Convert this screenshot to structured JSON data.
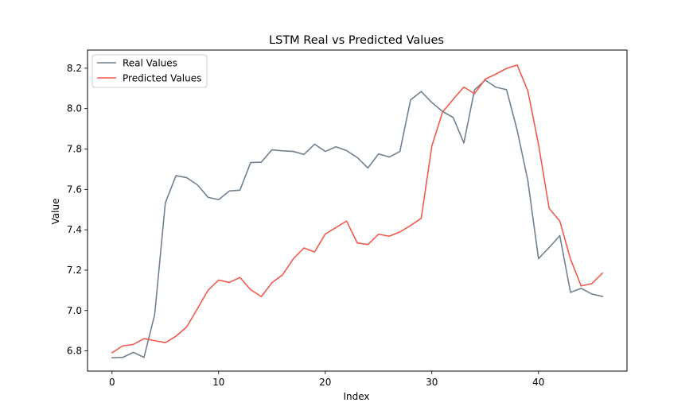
{
  "chart_data": {
    "type": "line",
    "title": "LSTM Real vs Predicted Values",
    "xlabel": "Index",
    "ylabel": "Value",
    "xlim": [
      -2.3,
      48.3
    ],
    "ylim": [
      6.7,
      8.29
    ],
    "xticks": [
      0,
      10,
      20,
      30,
      40
    ],
    "yticks": [
      6.8,
      7.0,
      7.2,
      7.4,
      7.6,
      7.8,
      8.0,
      8.2
    ],
    "grid": false,
    "legend_position": "upper-left",
    "series": [
      {
        "name": "Real Values",
        "color": "#708090",
        "values": [
          6.766,
          6.768,
          6.793,
          6.768,
          6.98,
          7.534,
          7.668,
          7.658,
          7.623,
          7.561,
          7.549,
          7.592,
          7.596,
          7.733,
          7.735,
          7.796,
          7.791,
          7.788,
          7.773,
          7.824,
          7.788,
          7.811,
          7.792,
          7.758,
          7.706,
          7.776,
          7.76,
          7.788,
          8.043,
          8.085,
          8.03,
          7.986,
          7.956,
          7.83,
          8.093,
          8.141,
          8.106,
          8.094,
          7.893,
          7.644,
          7.257,
          7.312,
          7.371,
          7.09,
          7.11,
          7.082,
          7.07
        ]
      },
      {
        "name": "Predicted Values",
        "color": "#ef5a4e",
        "values": [
          6.791,
          6.825,
          6.832,
          6.861,
          6.851,
          6.841,
          6.873,
          6.919,
          7.008,
          7.1,
          7.151,
          7.139,
          7.164,
          7.103,
          7.069,
          7.138,
          7.177,
          7.256,
          7.31,
          7.29,
          7.379,
          7.411,
          7.443,
          7.335,
          7.327,
          7.378,
          7.368,
          7.389,
          7.421,
          7.457,
          7.815,
          7.983,
          8.046,
          8.107,
          8.074,
          8.146,
          8.171,
          8.199,
          8.216,
          8.088,
          7.823,
          7.506,
          7.443,
          7.255,
          7.122,
          7.133,
          7.185
        ]
      }
    ]
  }
}
